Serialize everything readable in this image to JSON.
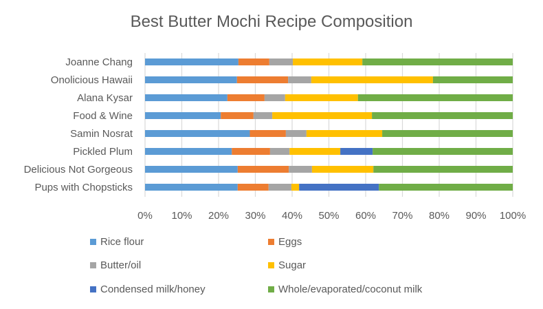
{
  "chart_data": {
    "type": "bar",
    "orientation": "horizontal",
    "stacked": "percent",
    "title": "Best Butter Mochi Recipe Composition",
    "xlabel": "",
    "ylabel": "",
    "xlim": [
      0,
      100
    ],
    "x_ticks": [
      "0%",
      "10%",
      "20%",
      "30%",
      "40%",
      "50%",
      "60%",
      "70%",
      "80%",
      "90%",
      "100%"
    ],
    "grid": "vertical",
    "legend_position": "bottom",
    "categories": [
      "Joanne Chang",
      "Onolicious Hawaii",
      "Alana Kysar",
      "Food & Wine",
      "Samin Nosrat",
      "Pickled Plum",
      "Delicious Not Gorgeous",
      "Pups with Chopsticks"
    ],
    "series": [
      {
        "name": "Rice flour",
        "color": "#5B9BD5",
        "values": [
          25.4,
          25.0,
          22.4,
          20.6,
          28.5,
          23.6,
          25.2,
          25.2
        ]
      },
      {
        "name": "Eggs",
        "color": "#ED7D31",
        "values": [
          8.4,
          13.9,
          10.1,
          8.9,
          9.8,
          10.4,
          13.9,
          8.4
        ]
      },
      {
        "name": "Butter/oil",
        "color": "#A5A5A5",
        "values": [
          6.4,
          6.3,
          5.6,
          5.1,
          5.6,
          5.3,
          6.3,
          6.2
        ]
      },
      {
        "name": "Sugar",
        "color": "#FFC000",
        "values": [
          18.9,
          33.1,
          19.8,
          27.1,
          20.6,
          13.8,
          16.7,
          2.1
        ]
      },
      {
        "name": "Condensed milk/honey",
        "color": "#4472C4",
        "values": [
          0,
          0,
          0,
          0,
          0,
          8.8,
          0,
          21.7
        ]
      },
      {
        "name": "Whole/evaporated/coconut milk",
        "color": "#70AD47",
        "values": [
          40.9,
          21.7,
          42.1,
          38.3,
          35.5,
          38.1,
          37.9,
          36.4
        ]
      }
    ]
  }
}
